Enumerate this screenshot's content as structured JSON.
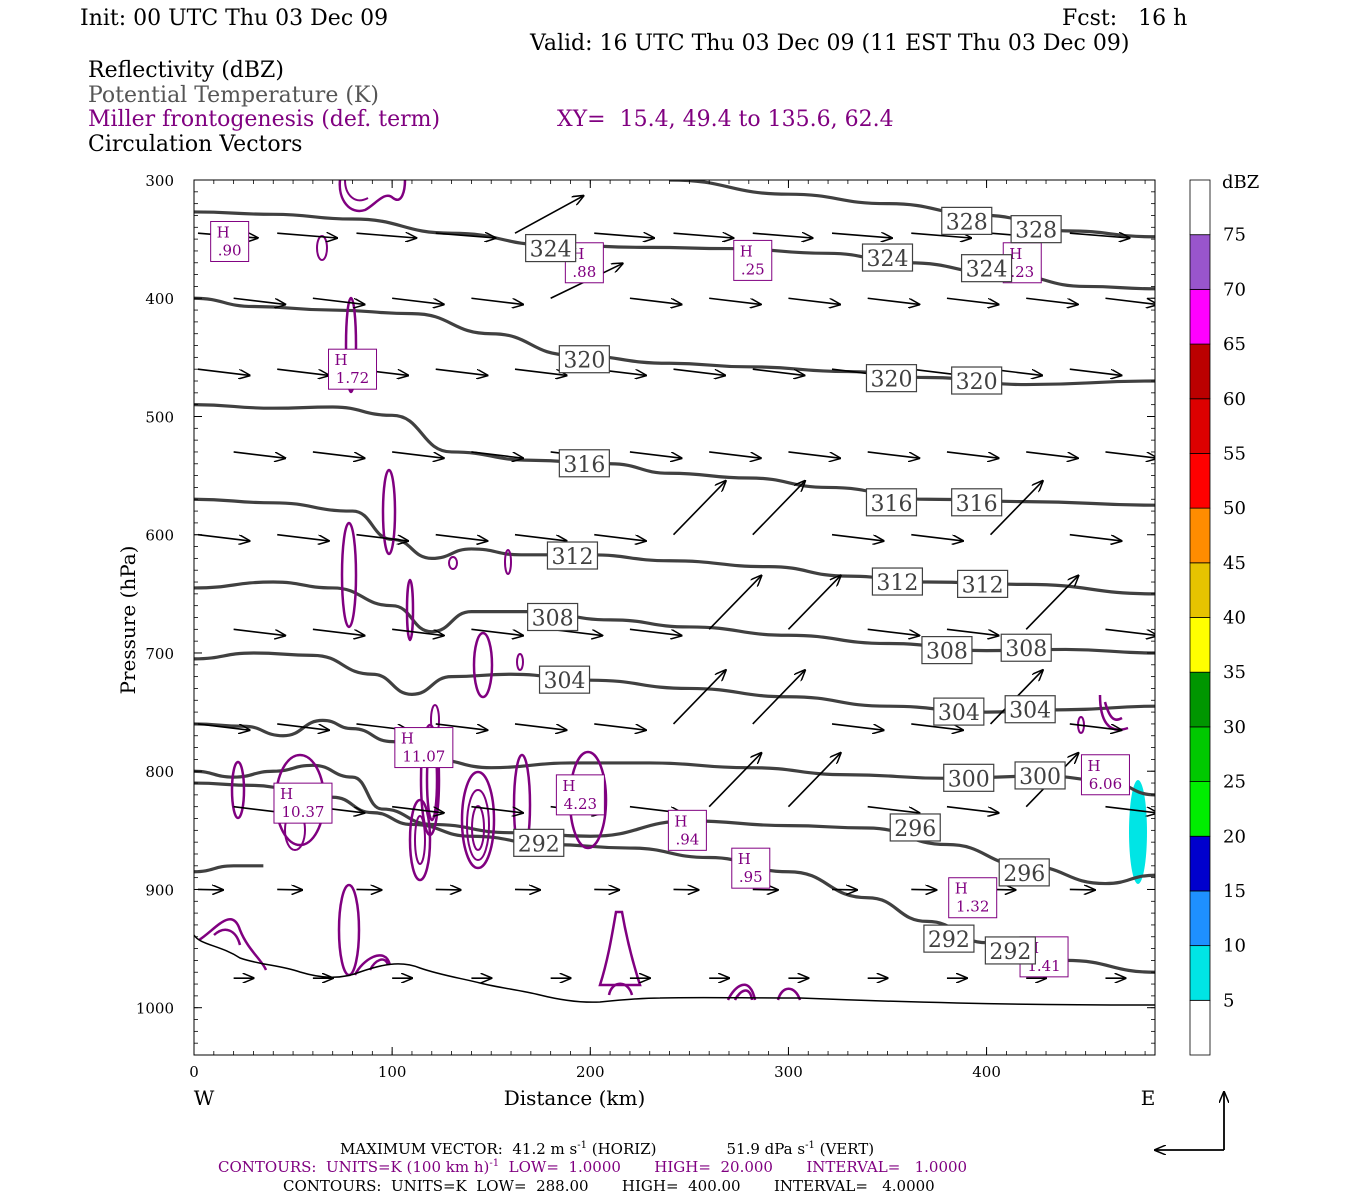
{
  "header": {
    "init": "Init: 00 UTC Thu 03 Dec 09",
    "fcst": "Fcst:   16 h",
    "valid": "Valid: 16 UTC Thu 03 Dec 09 (11 EST Thu 03 Dec 09)"
  },
  "legend": {
    "line1": "Reflectivity (dBZ)",
    "line2": "Potential Temperature (K)",
    "line3": "Miller frontogenesis (def. term)",
    "xy": "XY=  15.4, 49.4 to 135.6, 62.4",
    "line4": "Circulation Vectors"
  },
  "footer": {
    "max_vector_a": "MAXIMUM VECTOR:  41.2 m s",
    "max_vector_a_sup": "-1",
    "max_vector_b": " (HORIZ)",
    "max_vector_c": "51.9 dPa s",
    "max_vector_c_sup": "-1",
    "max_vector_d": " (VERT)",
    "contours1_a": "CONTOURS:  UNITS=K (100 km h)",
    "contours1_sup": "-1",
    "contours1_b": "  LOW=  1.0000       HIGH=  20.000       INTERVAL=   1.0000",
    "contours2": "CONTOURS:  UNITS=K  LOW=  288.00       HIGH=  400.00       INTERVAL=   4.0000"
  },
  "chart_data": {
    "type": "cross-section",
    "xlabel": "Distance (km)",
    "ylabel": "Pressure (hPa)",
    "xlim": [
      0,
      485
    ],
    "ylim": [
      1040,
      300
    ],
    "x_ticks": [
      "0",
      "100",
      "200",
      "300",
      "400"
    ],
    "y_ticks": [
      "300",
      "400",
      "500",
      "600",
      "700",
      "800",
      "900",
      "1000"
    ],
    "x_left_label": "W",
    "x_right_label": "E",
    "colorbar": {
      "unit": "dBZ",
      "levels": [
        "5",
        "10",
        "15",
        "20",
        "25",
        "30",
        "35",
        "40",
        "45",
        "50",
        "55",
        "60",
        "65",
        "70",
        "75"
      ],
      "colors": [
        "#ffffff",
        "#00e5e5",
        "#1e90ff",
        "#0000cd",
        "#00ee00",
        "#00c800",
        "#009600",
        "#ffff00",
        "#e6c300",
        "#ff8c00",
        "#ff0000",
        "#dd0000",
        "#bb0000",
        "#ff00ff",
        "#9955cc",
        "#ffffff"
      ]
    },
    "theta_contours": [
      {
        "level": "328",
        "label_at": [
          [
            390,
            335
          ],
          [
            425,
            342
          ]
        ],
        "points": [
          [
            240,
            300
          ],
          [
            300,
            312
          ],
          [
            350,
            320
          ],
          [
            400,
            330
          ],
          [
            440,
            343
          ],
          [
            485,
            348
          ]
        ]
      },
      {
        "level": "324",
        "label_at": [
          [
            180,
            358
          ],
          [
            350,
            366
          ],
          [
            400,
            375
          ]
        ],
        "points": [
          [
            0,
            327
          ],
          [
            40,
            329
          ],
          [
            80,
            333
          ],
          [
            130,
            345
          ],
          [
            180,
            355
          ],
          [
            230,
            357
          ],
          [
            270,
            358
          ],
          [
            320,
            362
          ],
          [
            360,
            370
          ],
          [
            410,
            380
          ],
          [
            450,
            390
          ],
          [
            485,
            392
          ]
        ]
      },
      {
        "level": "320",
        "label_at": [
          [
            197,
            452
          ],
          [
            352,
            468
          ],
          [
            395,
            470
          ]
        ],
        "points": [
          [
            0,
            400
          ],
          [
            30,
            407
          ],
          [
            70,
            410
          ],
          [
            110,
            413
          ],
          [
            150,
            430
          ],
          [
            190,
            448
          ],
          [
            240,
            455
          ],
          [
            280,
            458
          ],
          [
            330,
            462
          ],
          [
            370,
            467
          ],
          [
            420,
            473
          ],
          [
            485,
            470
          ]
        ]
      },
      {
        "level": "316",
        "label_at": [
          [
            197,
            540
          ],
          [
            352,
            573
          ],
          [
            395,
            573
          ]
        ],
        "points": [
          [
            0,
            490
          ],
          [
            40,
            493
          ],
          [
            70,
            492
          ],
          [
            100,
            499
          ],
          [
            130,
            530
          ],
          [
            170,
            537
          ],
          [
            210,
            540
          ],
          [
            240,
            548
          ],
          [
            280,
            552
          ],
          [
            320,
            560
          ],
          [
            370,
            570
          ],
          [
            420,
            572
          ],
          [
            485,
            575
          ]
        ]
      },
      {
        "level": "312",
        "label_at": [
          [
            191,
            618
          ],
          [
            355,
            640
          ],
          [
            398,
            642
          ]
        ],
        "points": [
          [
            0,
            570
          ],
          [
            40,
            573
          ],
          [
            80,
            580
          ],
          [
            100,
            604
          ],
          [
            120,
            620
          ],
          [
            140,
            612
          ],
          [
            165,
            617
          ],
          [
            200,
            617
          ],
          [
            240,
            622
          ],
          [
            290,
            627
          ],
          [
            330,
            635
          ],
          [
            370,
            640
          ],
          [
            420,
            642
          ],
          [
            485,
            650
          ]
        ]
      },
      {
        "level": "308",
        "label_at": [
          [
            181,
            670
          ],
          [
            380,
            698
          ],
          [
            420,
            696
          ]
        ],
        "points": [
          [
            0,
            645
          ],
          [
            40,
            640
          ],
          [
            70,
            645
          ],
          [
            100,
            660
          ],
          [
            120,
            682
          ],
          [
            140,
            665
          ],
          [
            170,
            665
          ],
          [
            210,
            672
          ],
          [
            250,
            678
          ],
          [
            300,
            685
          ],
          [
            350,
            692
          ],
          [
            400,
            698
          ],
          [
            440,
            697
          ],
          [
            485,
            700
          ]
        ]
      },
      {
        "level": "304",
        "label_at": [
          [
            187,
            723
          ],
          [
            386,
            750
          ],
          [
            422,
            748
          ]
        ],
        "points": [
          [
            0,
            705
          ],
          [
            30,
            700
          ],
          [
            60,
            702
          ],
          [
            90,
            718
          ],
          [
            110,
            735
          ],
          [
            130,
            720
          ],
          [
            160,
            718
          ],
          [
            200,
            723
          ],
          [
            250,
            730
          ],
          [
            300,
            737
          ],
          [
            350,
            745
          ],
          [
            400,
            750
          ],
          [
            440,
            748
          ],
          [
            485,
            745
          ]
        ]
      },
      {
        "level": "300",
        "label_at": [
          [
            391,
            806
          ],
          [
            427,
            804
          ]
        ],
        "points": [
          [
            0,
            760
          ],
          [
            25,
            762
          ],
          [
            45,
            770
          ],
          [
            65,
            757
          ],
          [
            80,
            764
          ],
          [
            100,
            775
          ],
          [
            120,
            790
          ],
          [
            150,
            797
          ],
          [
            190,
            793
          ],
          [
            230,
            793
          ],
          [
            280,
            797
          ],
          [
            330,
            803
          ],
          [
            380,
            806
          ],
          [
            430,
            804
          ],
          [
            460,
            808
          ],
          [
            485,
            820
          ]
        ]
      },
      {
        "level": "296",
        "label_at": [
          [
            364,
            848
          ],
          [
            419,
            886
          ]
        ],
        "points": [
          [
            0,
            800
          ],
          [
            20,
            805
          ],
          [
            40,
            800
          ],
          [
            60,
            795
          ],
          [
            80,
            805
          ],
          [
            95,
            832
          ],
          [
            120,
            845
          ],
          [
            160,
            852
          ],
          [
            200,
            855
          ],
          [
            250,
            842
          ],
          [
            300,
            846
          ],
          [
            340,
            848
          ],
          [
            380,
            862
          ],
          [
            420,
            880
          ],
          [
            460,
            895
          ],
          [
            485,
            888
          ]
        ]
      },
      {
        "level": "292",
        "label_at": [
          [
            174,
            861
          ],
          [
            381,
            942
          ],
          [
            412,
            952
          ]
        ],
        "points": [
          [
            0,
            810
          ],
          [
            30,
            812
          ],
          [
            50,
            815
          ],
          [
            70,
            822
          ],
          [
            90,
            835
          ],
          [
            110,
            845
          ],
          [
            140,
            855
          ],
          [
            180,
            862
          ],
          [
            220,
            865
          ],
          [
            260,
            873
          ],
          [
            300,
            885
          ],
          [
            340,
            907
          ],
          [
            370,
            927
          ],
          [
            400,
            945
          ],
          [
            440,
            960
          ],
          [
            485,
            970
          ]
        ]
      },
      {
        "level": "288",
        "label_at": [],
        "points": [
          [
            0,
            885
          ],
          [
            20,
            880
          ],
          [
            35,
            880
          ]
        ]
      }
    ],
    "frontogenesis_maxima": [
      {
        "label": "H",
        "value": ".90",
        "x": 18,
        "p": 352
      },
      {
        "label": "H",
        "value": "1.72",
        "x": 80,
        "p": 460
      },
      {
        "label": "H",
        "value": ".88",
        "x": 197,
        "p": 370
      },
      {
        "label": "H",
        "value": ".25",
        "x": 282,
        "p": 368
      },
      {
        "label": "H",
        "value": ".23",
        "x": 418,
        "p": 370
      },
      {
        "label": "H",
        "value": "11.07",
        "x": 116,
        "p": 780
      },
      {
        "label": "H",
        "value": "10.37",
        "x": 55,
        "p": 827
      },
      {
        "label": "H",
        "value": "4.23",
        "x": 195,
        "p": 820
      },
      {
        "label": "H",
        "value": ".94",
        "x": 249,
        "p": 850
      },
      {
        "label": "H",
        "value": ".95",
        "x": 281,
        "p": 882
      },
      {
        "label": "H",
        "value": "1.32",
        "x": 393,
        "p": 907
      },
      {
        "label": "H",
        "value": "1.41",
        "x": 429,
        "p": 957
      },
      {
        "label": "H",
        "value": "6.06",
        "x": 460,
        "p": 803
      }
    ],
    "vector_rows_p": [
      345,
      400,
      460,
      530,
      600,
      680,
      760,
      830,
      900,
      975
    ]
  }
}
